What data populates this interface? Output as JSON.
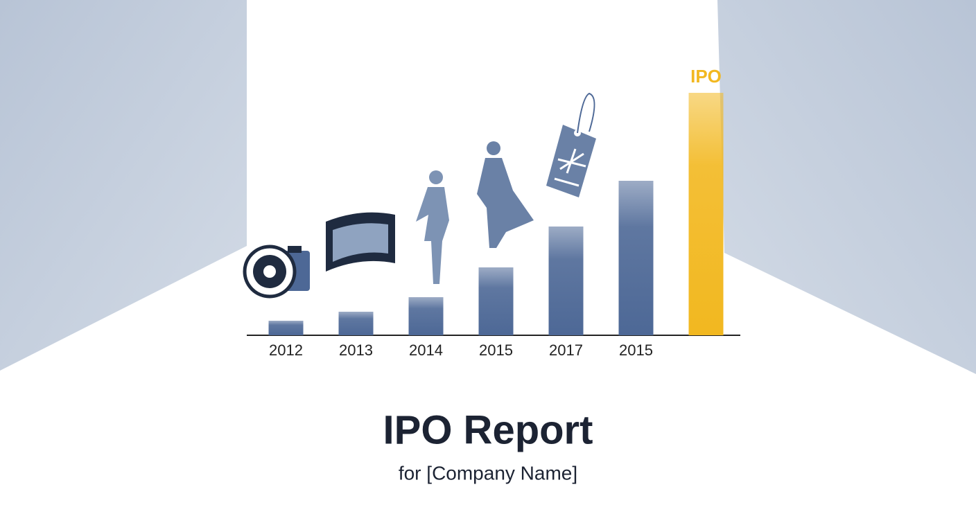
{
  "chart_data": {
    "type": "bar",
    "title": "IPO Report",
    "subtitle": "for [Company Name]",
    "categories": [
      "2012",
      "2013",
      "2014",
      "2015",
      "2017",
      "2015",
      null
    ],
    "values": [
      21,
      34,
      55,
      98,
      157,
      223,
      350
    ],
    "color": "#4d6896",
    "highlight_color": "#f2b820",
    "highlight_label": "IPO",
    "ylim": [
      0,
      350
    ]
  }
}
